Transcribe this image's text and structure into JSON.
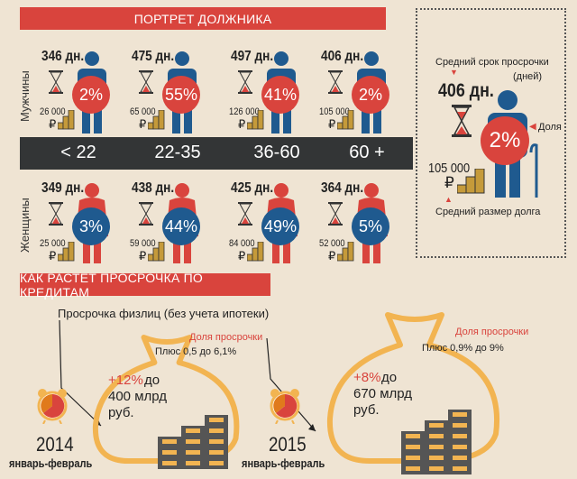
{
  "header": {
    "title": "ПОРТРЕТ ДОЛЖНИКА"
  },
  "rows": {
    "men_label": "Мужчины",
    "women_label": "Женщины"
  },
  "men": [
    {
      "days": "346 дн.",
      "share": "2%",
      "debt": "26 000"
    },
    {
      "days": "475 дн.",
      "share": "55%",
      "debt": "65 000"
    },
    {
      "days": "497 дн.",
      "share": "41%",
      "debt": "126 000"
    },
    {
      "days": "406 дн.",
      "share": "2%",
      "debt": "105 000"
    }
  ],
  "women": [
    {
      "days": "349 дн.",
      "share": "3%",
      "debt": "25 000"
    },
    {
      "days": "438 дн.",
      "share": "44%",
      "debt": "59 000"
    },
    {
      "days": "425 дн.",
      "share": "49%",
      "debt": "84 000"
    },
    {
      "days": "364 дн.",
      "share": "5%",
      "debt": "52 000"
    }
  ],
  "currency": "₽",
  "ages": [
    "< 22",
    "22-35",
    "36-60",
    "60 +"
  ],
  "legend": {
    "term_label": "Средний срок просрочки",
    "term_unit": "(дней)",
    "days": "406 дн.",
    "share_label": "Доля",
    "share": "2%",
    "debt": "105 000",
    "debt_label": "Средний размер долга"
  },
  "growth": {
    "title": "КАК РАСТЕТ ПРОСРОЧКА ПО КРЕДИТАМ",
    "subtitle": "Просрочка физлиц (без учета ипотеки)",
    "periods": [
      {
        "year": "2014",
        "months": "январь-февраль",
        "share_label": "Доля просрочки",
        "share_text": "Плюс 0,5 до 6,1%",
        "growth": "+12%",
        "to": "до",
        "amount": "400 млрд",
        "unit": "руб."
      },
      {
        "year": "2015",
        "months": "январь-февраль",
        "share_label": "Доля просрочки",
        "share_text": "Плюс 0,9% до 9%",
        "growth": "+8%",
        "to": "до",
        "amount": "670 млрд",
        "unit": "руб."
      }
    ]
  },
  "colors": {
    "red": "#d9443d",
    "blue": "#1f5a8f",
    "gold": "#f2b451",
    "dark": "#333536"
  }
}
